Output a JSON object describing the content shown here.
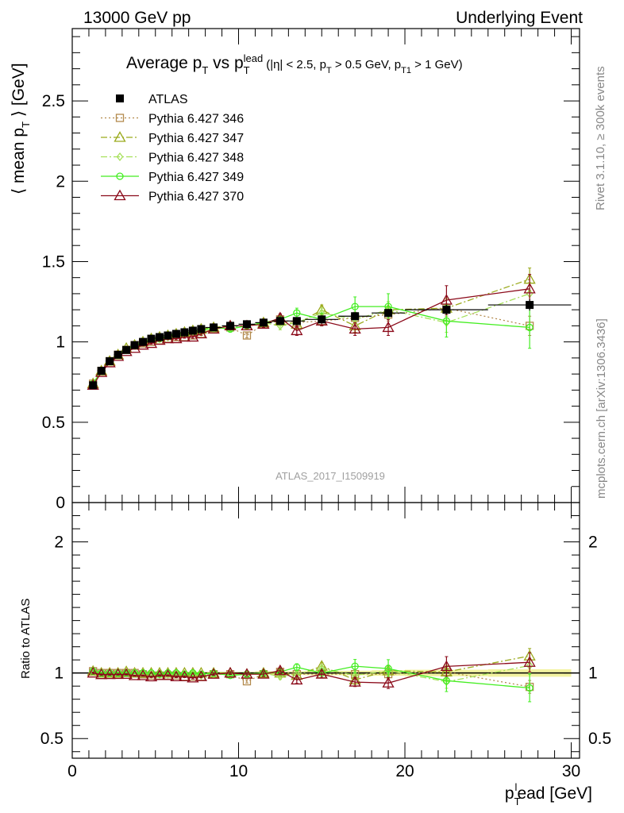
{
  "header": {
    "left": "13000 GeV pp",
    "right": "Underlying Event"
  },
  "side_labels": {
    "rivet": "Rivet 3.1.10, ≥ 300k events",
    "mcplots": "mcplots.cern.ch [arXiv:1306.3436]"
  },
  "watermark": "ATLAS_2017_I1509919",
  "colors": {
    "atlas": "#000000",
    "p346": "#b38a4d",
    "p347": "#9aaa1c",
    "p348": "#a6e05a",
    "p349": "#44ee22",
    "p370": "#8b0a1a",
    "band": "#f2f2a0"
  },
  "chart_data": [
    {
      "type": "scatter",
      "panel": "main",
      "title": {
        "main": "Average p",
        "sub1": "T",
        "mid": " vs p",
        "sub2": "T",
        "sup2": "lead",
        "cuts": "(|η| < 2.5, p",
        "cuts_sub1": "T",
        "cuts_mid": " > 0.5 GeV, p",
        "cuts_sub2": "T1",
        "cuts_end": " > 1 GeV)"
      },
      "ylabel": {
        "pre": "⟨ mean p",
        "sub": "T",
        "post": " ⟩ [GeV]"
      },
      "xlim": [
        0,
        30.5
      ],
      "ylim": [
        0,
        2.95
      ],
      "yticks": [
        "0",
        "0.5",
        "1",
        "1.5",
        "2",
        "2.5"
      ],
      "ytick_values": [
        0,
        0.5,
        1,
        1.5,
        2,
        2.5
      ],
      "x": [
        1.25,
        1.75,
        2.25,
        2.75,
        3.25,
        3.75,
        4.25,
        4.75,
        5.25,
        5.75,
        6.25,
        6.75,
        7.25,
        7.75,
        8.5,
        9.5,
        10.5,
        11.5,
        12.5,
        13.5,
        15.0,
        17.0,
        19.0,
        22.5,
        27.5
      ],
      "xerr": [
        0.25,
        0.25,
        0.25,
        0.25,
        0.25,
        0.25,
        0.25,
        0.25,
        0.25,
        0.25,
        0.25,
        0.25,
        0.25,
        0.25,
        0.5,
        0.5,
        0.5,
        0.5,
        0.5,
        0.5,
        1.0,
        1.0,
        1.0,
        2.5,
        2.5
      ],
      "series": [
        {
          "name": "ATLAS",
          "key": "atlas",
          "marker": "square-filled",
          "line": "none",
          "values": [
            0.73,
            0.82,
            0.88,
            0.92,
            0.95,
            0.98,
            1.0,
            1.02,
            1.03,
            1.04,
            1.05,
            1.06,
            1.07,
            1.08,
            1.09,
            1.1,
            1.11,
            1.12,
            1.13,
            1.13,
            1.14,
            1.16,
            1.18,
            1.2,
            1.23
          ],
          "err": [
            0.01,
            0.01,
            0.01,
            0.01,
            0.01,
            0.01,
            0.01,
            0.01,
            0.01,
            0.01,
            0.01,
            0.01,
            0.01,
            0.01,
            0.01,
            0.01,
            0.01,
            0.015,
            0.015,
            0.015,
            0.02,
            0.02,
            0.025,
            0.03,
            0.035
          ]
        },
        {
          "name": "Pythia 6.427 346",
          "key": "p346",
          "marker": "square-open",
          "line": "dotted",
          "values": [
            0.74,
            0.82,
            0.88,
            0.92,
            0.95,
            0.98,
            0.99,
            1.0,
            1.01,
            1.02,
            1.03,
            1.03,
            1.04,
            1.05,
            1.08,
            1.09,
            1.04,
            1.11,
            1.14,
            1.12,
            1.13,
            1.15,
            1.17,
            1.21,
            1.1
          ],
          "err": [
            0.005,
            0.005,
            0.005,
            0.005,
            0.005,
            0.005,
            0.005,
            0.005,
            0.005,
            0.005,
            0.006,
            0.006,
            0.007,
            0.008,
            0.01,
            0.012,
            0.015,
            0.02,
            0.025,
            0.03,
            0.03,
            0.035,
            0.04,
            0.05,
            0.06
          ]
        },
        {
          "name": "Pythia 6.427 347",
          "key": "p347",
          "marker": "triangle-open",
          "line": "dashdot",
          "values": [
            0.74,
            0.82,
            0.88,
            0.92,
            0.96,
            0.98,
            1.0,
            1.02,
            1.03,
            1.04,
            1.05,
            1.06,
            1.07,
            1.08,
            1.09,
            1.1,
            1.1,
            1.12,
            1.13,
            1.11,
            1.2,
            1.1,
            1.2,
            1.21,
            1.39
          ],
          "err": [
            0.005,
            0.005,
            0.005,
            0.005,
            0.005,
            0.005,
            0.005,
            0.005,
            0.006,
            0.006,
            0.007,
            0.007,
            0.008,
            0.009,
            0.01,
            0.012,
            0.015,
            0.02,
            0.025,
            0.03,
            0.03,
            0.04,
            0.05,
            0.06,
            0.07
          ]
        },
        {
          "name": "Pythia 6.427 348",
          "key": "p348",
          "marker": "diamond-open",
          "line": "dashdot",
          "values": [
            0.74,
            0.82,
            0.88,
            0.92,
            0.95,
            0.98,
            1.0,
            1.01,
            1.02,
            1.03,
            1.04,
            1.05,
            1.06,
            1.06,
            1.08,
            1.09,
            1.1,
            1.12,
            1.1,
            1.12,
            1.18,
            1.14,
            1.2,
            1.12,
            1.3
          ],
          "err": [
            0.005,
            0.005,
            0.005,
            0.005,
            0.005,
            0.005,
            0.005,
            0.005,
            0.006,
            0.006,
            0.007,
            0.007,
            0.008,
            0.009,
            0.01,
            0.012,
            0.015,
            0.02,
            0.025,
            0.03,
            0.03,
            0.04,
            0.05,
            0.06,
            0.07
          ]
        },
        {
          "name": "Pythia 6.427 349",
          "key": "p349",
          "marker": "circle-open",
          "line": "solid",
          "values": [
            0.74,
            0.82,
            0.88,
            0.92,
            0.95,
            0.98,
            1.0,
            1.02,
            1.02,
            1.04,
            1.05,
            1.05,
            1.07,
            1.07,
            1.09,
            1.08,
            1.1,
            1.12,
            1.14,
            1.18,
            1.14,
            1.22,
            1.22,
            1.13,
            1.09
          ],
          "err": [
            0.005,
            0.005,
            0.005,
            0.005,
            0.005,
            0.005,
            0.005,
            0.005,
            0.006,
            0.006,
            0.007,
            0.007,
            0.008,
            0.009,
            0.01,
            0.012,
            0.015,
            0.02,
            0.025,
            0.03,
            0.04,
            0.06,
            0.08,
            0.1,
            0.13
          ]
        },
        {
          "name": "Pythia 6.427 370",
          "key": "p370",
          "marker": "triangle-open",
          "line": "solid",
          "values": [
            0.73,
            0.81,
            0.87,
            0.91,
            0.94,
            0.96,
            0.98,
            0.99,
            1.01,
            1.02,
            1.02,
            1.03,
            1.03,
            1.05,
            1.08,
            1.1,
            1.1,
            1.11,
            1.15,
            1.07,
            1.13,
            1.08,
            1.09,
            1.26,
            1.33
          ],
          "err": [
            0.005,
            0.005,
            0.005,
            0.005,
            0.005,
            0.005,
            0.005,
            0.005,
            0.006,
            0.006,
            0.007,
            0.007,
            0.008,
            0.009,
            0.01,
            0.012,
            0.015,
            0.02,
            0.025,
            0.03,
            0.03,
            0.04,
            0.05,
            0.09,
            0.09
          ]
        }
      ],
      "legend": "top-left",
      "grid": false
    },
    {
      "type": "scatter",
      "panel": "ratio",
      "ylabel": "Ratio to ATLAS",
      "xlabel": {
        "pre": "p",
        "sub": "T",
        "sup": "l",
        "post": "ead [GeV]"
      },
      "xlim": [
        0,
        30.5
      ],
      "ylim": [
        0.35,
        2.3
      ],
      "xticks": [
        "0",
        "10",
        "20",
        "30"
      ],
      "xtick_values": [
        0,
        10,
        20,
        30
      ],
      "yticks": [
        "0.5",
        "1",
        "2"
      ],
      "ytick_values": [
        0.5,
        1,
        2
      ],
      "reference_line": 1,
      "grid": false
    }
  ]
}
